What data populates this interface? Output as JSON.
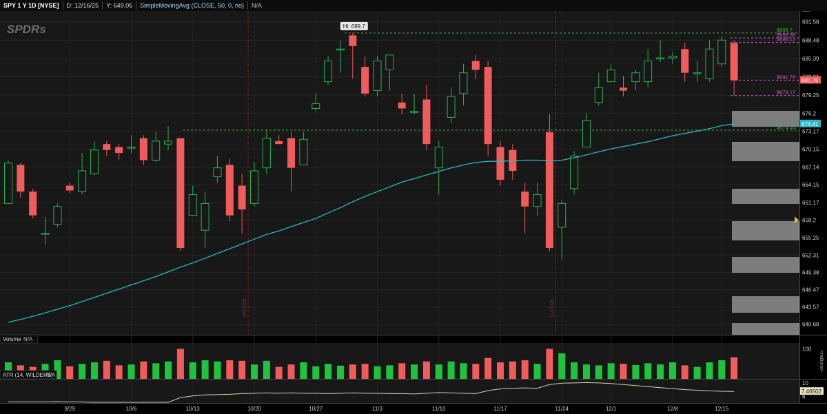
{
  "header": {
    "symbol": "SPY 1 Y 1D [NYSE]",
    "date": "D: 12/16/25",
    "y_value": "Y: 649.06",
    "study": "SimpleMovingAvg (CLOSE, 50, 0, no)",
    "na": "N/A"
  },
  "logo_text": "SPDRs",
  "colors": {
    "up": "#26b34a",
    "down": "#f05b5b",
    "sma": "#2bb6c4",
    "atr": "#d9d3a8",
    "bg": "#181818"
  },
  "chart_data": {
    "type": "candlestick",
    "ylim": [
      638.9,
      693.4
    ],
    "y_ticks": [
      "691.58",
      "688.48",
      "685.39",
      "682.31",
      "679.25",
      "676.2",
      "673.17",
      "670.15",
      "667.14",
      "664.15",
      "661.17",
      "658.2",
      "655.25",
      "652.31",
      "649.38",
      "646.47",
      "643.57",
      "640.68"
    ],
    "x_labels": [
      {
        "label": "9/29",
        "at": 5
      },
      {
        "label": "10/6",
        "at": 10
      },
      {
        "label": "10/13",
        "at": 15
      },
      {
        "label": "10/20",
        "at": 20
      },
      {
        "label": "10/27",
        "at": 25
      },
      {
        "label": "11/3",
        "at": 30
      },
      {
        "label": "11/10",
        "at": 35
      },
      {
        "label": "11/17",
        "at": 40
      },
      {
        "label": "11/24",
        "at": 45
      },
      {
        "label": "12/1",
        "at": 49
      },
      {
        "label": "12/8",
        "at": 54
      },
      {
        "label": "12/15",
        "at": 58
      }
    ],
    "vlines": [
      {
        "at": 19.5,
        "label": "10/17/25"
      },
      {
        "at": 44.5,
        "label": "11/21/25"
      }
    ],
    "candles": [
      [
        661.0,
        667.8,
        668.2,
        661.0
      ],
      [
        667.5,
        663.0,
        667.8,
        662.0
      ],
      [
        663.0,
        659.0,
        663.5,
        658.5
      ],
      [
        656.0,
        656.0,
        658.7,
        654.0
      ],
      [
        657.5,
        660.5,
        661.0,
        657.0
      ],
      [
        664.0,
        663.2,
        664.5,
        662.8
      ],
      [
        663.0,
        666.5,
        669.5,
        662.5
      ],
      [
        666.0,
        670.0,
        671.5,
        665.8
      ],
      [
        671.0,
        670.0,
        671.5,
        669.0
      ],
      [
        670.5,
        669.5,
        671.0,
        668.3
      ],
      [
        670.5,
        670.5,
        672.5,
        669.5
      ],
      [
        672.0,
        668.3,
        672.5,
        667.5
      ],
      [
        668.3,
        671.5,
        673.0,
        668.0
      ],
      [
        671.0,
        671.5,
        674.0,
        670.0
      ],
      [
        672.0,
        653.5,
        672.0,
        653.0
      ],
      [
        659.0,
        662.5,
        664.0,
        659.0
      ],
      [
        656.5,
        661.0,
        663.0,
        653.5
      ],
      [
        665.5,
        667.0,
        669.0,
        664.5
      ],
      [
        667.5,
        659.0,
        668.5,
        658.0
      ],
      [
        664.0,
        660.0,
        666.0,
        656.0
      ],
      [
        661.0,
        666.5,
        668.0,
        660.5
      ],
      [
        667.0,
        672.0,
        673.5,
        666.0
      ],
      [
        671.5,
        671.0,
        672.5,
        671.0
      ],
      [
        672.0,
        667.0,
        673.0,
        663.0
      ],
      [
        667.5,
        671.8,
        673.0,
        667.5
      ],
      [
        677.0,
        677.8,
        679.5,
        676.5
      ],
      [
        681.5,
        685.0,
        685.8,
        681.0
      ],
      [
        687.0,
        687.0,
        688.5,
        683.0
      ],
      [
        689.3,
        687.5,
        689.7,
        682.0
      ],
      [
        684.0,
        679.5,
        685.8,
        679.0
      ],
      [
        680.0,
        685.0,
        685.8,
        679.0
      ],
      [
        683.5,
        686.0,
        686.0,
        680.0
      ],
      [
        678.0,
        677.0,
        679.5,
        676.0
      ],
      [
        676.5,
        676.5,
        679.5,
        676.0
      ],
      [
        678.5,
        671.0,
        681.0,
        670.0
      ],
      [
        667.0,
        670.5,
        671.5,
        662.5
      ],
      [
        675.5,
        679.0,
        680.5,
        674.5
      ],
      [
        679.5,
        683.0,
        684.5,
        677.5
      ],
      [
        685.0,
        683.5,
        686.0,
        682.0
      ],
      [
        684.0,
        671.0,
        685.0,
        669.0
      ],
      [
        670.5,
        665.0,
        671.5,
        664.0
      ],
      [
        670.0,
        666.5,
        671.0,
        665.0
      ],
      [
        663.0,
        660.5,
        664.5,
        656.0
      ],
      [
        660.5,
        662.5,
        664.5,
        659.0
      ],
      [
        673.0,
        653.5,
        676.0,
        653.0
      ],
      [
        657.0,
        661.0,
        661.5,
        651.5
      ],
      [
        663.5,
        669.0,
        669.8,
        662.5
      ],
      [
        670.5,
        675.0,
        676.2,
        670.5
      ],
      [
        678.0,
        680.5,
        683.0,
        677.5
      ],
      [
        681.5,
        683.5,
        684.5,
        681.5
      ],
      [
        680.5,
        680.0,
        682.5,
        679.0
      ],
      [
        681.5,
        683.0,
        683.5,
        680.0
      ],
      [
        681.5,
        685.0,
        687.0,
        680.5
      ],
      [
        685.5,
        685.5,
        688.5,
        684.8
      ],
      [
        685.5,
        685.8,
        686.5,
        684.5
      ],
      [
        687.0,
        683.0,
        688.0,
        681.5
      ],
      [
        683.0,
        683.0,
        685.0,
        681.5
      ],
      [
        682.0,
        687.0,
        688.5,
        681.5
      ],
      [
        684.5,
        688.5,
        689.2,
        684.0
      ],
      [
        688.0,
        681.76,
        688.5,
        679.17
      ]
    ],
    "sma": [
      641.0,
      641.5,
      642.0,
      642.6,
      643.2,
      643.8,
      644.5,
      645.2,
      645.9,
      646.6,
      647.3,
      648.0,
      648.7,
      649.5,
      650.3,
      651.0,
      651.8,
      652.6,
      653.4,
      654.2,
      655.0,
      655.8,
      656.4,
      657.1,
      657.8,
      658.5,
      659.4,
      660.3,
      661.3,
      662.2,
      663.0,
      663.8,
      664.6,
      665.2,
      665.8,
      666.4,
      667.0,
      667.5,
      667.9,
      668.1,
      668.1,
      668.2,
      668.3,
      668.3,
      668.2,
      668.3,
      668.7,
      669.2,
      669.7,
      670.2,
      670.6,
      671.0,
      671.4,
      671.9,
      672.4,
      672.8,
      673.2,
      673.6,
      674.1,
      674.41
    ],
    "volume": {
      "label": "Volume",
      "axis_label": "100",
      "unit": "<millions>",
      "values": [
        55,
        45,
        40,
        50,
        62,
        42,
        50,
        55,
        60,
        45,
        48,
        58,
        52,
        58,
        100,
        55,
        62,
        58,
        62,
        60,
        48,
        60,
        40,
        48,
        55,
        42,
        50,
        44,
        48,
        50,
        42,
        45,
        52,
        48,
        58,
        48,
        58,
        52,
        50,
        70,
        55,
        58,
        62,
        50,
        100,
        85,
        55,
        48,
        45,
        52,
        50,
        46,
        52,
        48,
        55,
        45,
        40,
        55,
        62,
        72
      ],
      "ylim": [
        0,
        110
      ]
    },
    "atr": {
      "label": "ATR (14, WILDERS)",
      "last": "7.46502",
      "ticks": [
        "10",
        "6"
      ],
      "values": [
        4.3,
        4.3,
        4.3,
        4.3,
        4.4,
        4.3,
        4.3,
        4.2,
        4.2,
        4.2,
        4.2,
        4.2,
        4.2,
        4.2,
        5.6,
        6.1,
        6.4,
        6.5,
        6.6,
        6.8,
        6.9,
        7.0,
        6.9,
        7.0,
        6.9,
        6.9,
        6.8,
        6.9,
        7.0,
        6.9,
        6.9,
        6.8,
        6.8,
        6.7,
        6.9,
        7.1,
        7.0,
        6.9,
        6.8,
        7.7,
        8.2,
        8.4,
        8.5,
        8.4,
        9.5,
        9.9,
        10.0,
        10.1,
        10.0,
        9.8,
        9.5,
        9.2,
        8.9,
        8.6,
        8.3,
        8.0,
        7.8,
        7.6,
        7.5,
        7.46502
      ],
      "ylim": [
        4,
        11
      ]
    },
    "hline_labels": {
      "hi": "Hi: 689.7",
      "p1": "$689.7",
      "p2": "$688.88",
      "p3": "$688.12",
      "p4": "$681.76",
      "p5": "$679.17",
      "p6": "$673.35",
      "last_price": "681.76",
      "sma_last": "674.41",
      "right_marker": "658.2"
    }
  }
}
